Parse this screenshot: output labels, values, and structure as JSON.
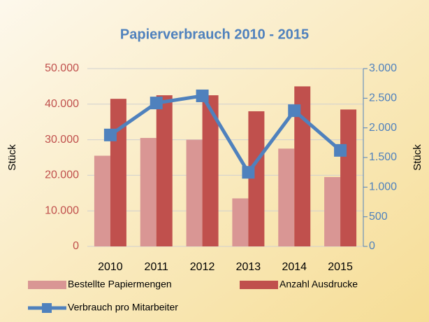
{
  "chart_data": {
    "type": "bar_line",
    "title": "Papierverbrauch 2010 - 2015",
    "y_label": "Stück",
    "y2_label": "Stück",
    "categories": [
      "2010",
      "2011",
      "2012",
      "2013",
      "2014",
      "2015"
    ],
    "series": [
      {
        "name": "Bestellte Papiermengen",
        "color": "#d99694",
        "type": "bar",
        "values": [
          25500,
          30500,
          30000,
          13500,
          27500,
          19500
        ]
      },
      {
        "name": "Anzahl Ausdrucke",
        "color": "#c0504d",
        "type": "bar",
        "values": [
          41500,
          42500,
          42500,
          38000,
          45000,
          38500
        ]
      },
      {
        "name": "Verbrauch pro Mitarbeiter",
        "color": "#4f81bd",
        "type": "line",
        "axis": "y2",
        "values": [
          1880,
          2420,
          2540,
          1250,
          2290,
          1620
        ]
      }
    ],
    "ylim": [
      0,
      50000
    ],
    "yticks": [
      0,
      {
        "value": 10000,
        "label": "10.000"
      },
      {
        "value": 20000,
        "label": "20.000"
      },
      {
        "value": 30000,
        "label": "30.000"
      },
      {
        "value": 40000,
        "label": "40.000"
      },
      {
        "value": 50000,
        "label": "50.000"
      }
    ],
    "y2lim": [
      0,
      3000
    ],
    "y2ticks": [
      0,
      500,
      {
        "value": 1000,
        "label": "1.000"
      },
      {
        "value": 1500,
        "label": "1.500"
      },
      {
        "value": 2000,
        "label": "2.000"
      },
      {
        "value": 2500,
        "label": "2.500"
      },
      {
        "value": 3000,
        "label": "3.000"
      }
    ],
    "grid": true
  }
}
